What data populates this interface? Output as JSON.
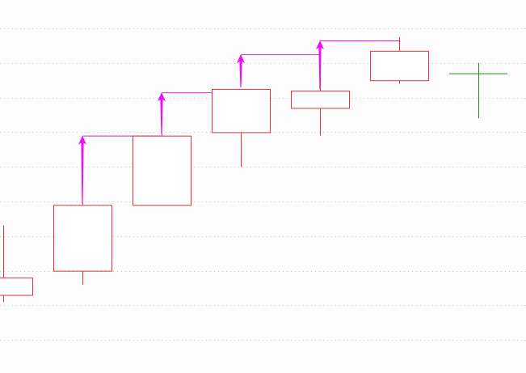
{
  "chart_data": {
    "type": "candlestick",
    "grid": true,
    "gridline_count": 10,
    "candles": [
      {
        "open": 6.3,
        "close": 6.8,
        "high": 8.3,
        "low": 6.1,
        "color": "#d9363e"
      },
      {
        "open": 7.0,
        "close": 8.9,
        "high": 8.95,
        "low": 6.6,
        "color": "#d9363e"
      },
      {
        "open": 8.9,
        "close": 10.9,
        "high": 10.95,
        "low": 8.9,
        "color": "#d9363e"
      },
      {
        "open": 11.0,
        "close": 12.25,
        "high": 12.25,
        "low": 10.0,
        "color": "#d9363e"
      },
      {
        "open": 11.7,
        "close": 12.2,
        "high": 13.45,
        "low": 10.9,
        "color": "#d9363e"
      },
      {
        "open": 12.5,
        "close": 13.35,
        "high": 13.75,
        "low": 12.4,
        "color": "#d9363e"
      },
      {
        "open": 12.7,
        "close": 12.7,
        "high": 13.0,
        "low": 11.4,
        "color": "#1e8c1e"
      }
    ],
    "markers": [
      {
        "candle": 1,
        "value": 10.9
      },
      {
        "candle": 2,
        "value": 12.15
      },
      {
        "candle": 3,
        "value": 13.25
      },
      {
        "candle": 4,
        "value": 13.65
      }
    ],
    "colors": {
      "up": "#d9363e",
      "doji": "#1e8c1e",
      "marker": "#ee10ee",
      "grid": "#c8c8c8"
    }
  }
}
